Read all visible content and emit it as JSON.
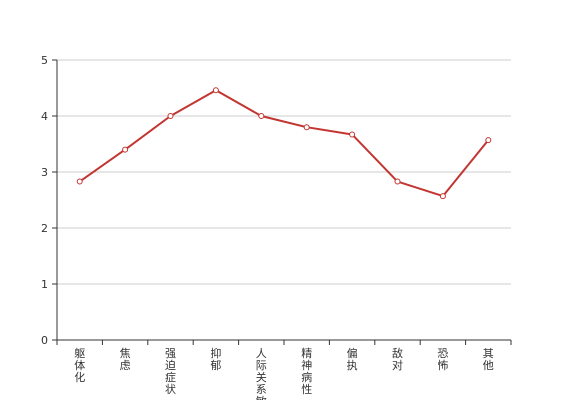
{
  "chart_data": {
    "type": "line",
    "categories": [
      "躯体化",
      "焦虑",
      "强迫症状",
      "抑郁",
      "人际关系敏感",
      "精神病性",
      "偏执",
      "敌对",
      "恐怖",
      "其他"
    ],
    "series": [
      {
        "values": [
          2.83,
          3.4,
          4.0,
          4.46,
          4.0,
          3.8,
          3.67,
          2.83,
          2.57,
          3.57
        ]
      }
    ],
    "ylim": [
      0,
      5
    ],
    "yticks": [
      0,
      1,
      2,
      3,
      4,
      5
    ],
    "grid": true,
    "line_color": "#c23531",
    "legend": "none"
  }
}
